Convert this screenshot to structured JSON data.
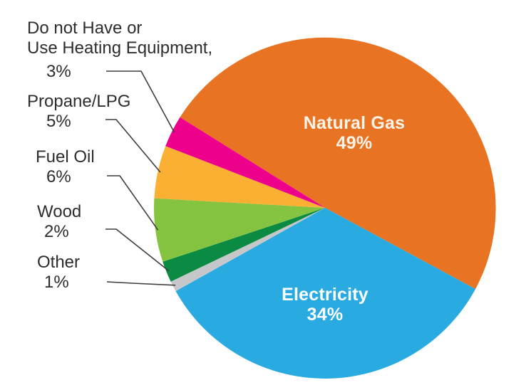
{
  "chart_data": {
    "type": "pie",
    "unit": "%",
    "start_angle_deg": -58,
    "direction": "clockwise",
    "slices": [
      {
        "label": "Natural Gas",
        "value": 49,
        "color": "#E87423",
        "label_style": "inside"
      },
      {
        "label": "Electricity",
        "value": 34,
        "color": "#29ABE2",
        "label_style": "inside"
      },
      {
        "label": "Other",
        "value": 1,
        "color": "#C6C7C9",
        "label_style": "callout"
      },
      {
        "label": "Wood",
        "value": 2,
        "color": "#0A8A42",
        "label_style": "callout"
      },
      {
        "label": "Fuel Oil",
        "value": 6,
        "color": "#85C441",
        "label_style": "callout"
      },
      {
        "label": "Propane/LPG",
        "value": 5,
        "color": "#FBAF33",
        "label_style": "callout"
      },
      {
        "label": "Do not Have or Use Heating Equipment",
        "value": 3,
        "color": "#EC008C",
        "label_style": "callout"
      }
    ],
    "inside_labels": [
      {
        "name": "Natural Gas",
        "pct": "49%"
      },
      {
        "name": "Electricity",
        "pct": "34%"
      }
    ],
    "callouts": [
      {
        "name": "Do not Have or\nUse Heating Equipment,",
        "pct": "3%",
        "slice_index": 6
      },
      {
        "name": "Propane/LPG",
        "pct": "5%",
        "slice_index": 5
      },
      {
        "name": "Fuel Oil",
        "pct": "6%",
        "slice_index": 4
      },
      {
        "name": "Wood",
        "pct": "2%",
        "slice_index": 3
      },
      {
        "name": "Other",
        "pct": "1%",
        "slice_index": 2
      }
    ],
    "leader_line_color": "#3E3D3C",
    "label_text_color": "#2E2D2C"
  }
}
